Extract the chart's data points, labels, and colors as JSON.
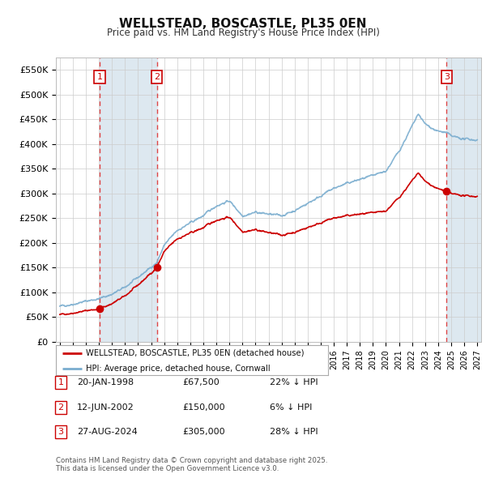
{
  "title": "WELLSTEAD, BOSCASTLE, PL35 0EN",
  "subtitle": "Price paid vs. HM Land Registry's House Price Index (HPI)",
  "background_color": "#ffffff",
  "plot_bg_color": "#ffffff",
  "grid_color": "#cccccc",
  "sale_dates_year": [
    1998.055,
    2002.44,
    2024.655
  ],
  "sale_prices": [
    67500,
    150000,
    305000
  ],
  "sale_labels": [
    "1",
    "2",
    "3"
  ],
  "ylim": [
    0,
    575000
  ],
  "yticks": [
    0,
    50000,
    100000,
    150000,
    200000,
    250000,
    300000,
    350000,
    400000,
    450000,
    500000,
    550000
  ],
  "ytick_labels": [
    "£0",
    "£50K",
    "£100K",
    "£150K",
    "£200K",
    "£250K",
    "£300K",
    "£350K",
    "£400K",
    "£450K",
    "£500K",
    "£550K"
  ],
  "xlim_start": 1994.7,
  "xlim_end": 2027.3,
  "legend_label_red": "WELLSTEAD, BOSCASTLE, PL35 0EN (detached house)",
  "legend_label_blue": "HPI: Average price, detached house, Cornwall",
  "table_rows": [
    {
      "num": "1",
      "date": "20-JAN-1998",
      "price": "£67,500",
      "hpi": "22% ↓ HPI"
    },
    {
      "num": "2",
      "date": "12-JUN-2002",
      "price": "£150,000",
      "hpi": "6% ↓ HPI"
    },
    {
      "num": "3",
      "date": "27-AUG-2024",
      "price": "£305,000",
      "hpi": "28% ↓ HPI"
    }
  ],
  "footnote": "Contains HM Land Registry data © Crown copyright and database right 2025.\nThis data is licensed under the Open Government Licence v3.0.",
  "red_color": "#cc0000",
  "blue_color": "#7aadcf",
  "vline_color": "#dd3333",
  "span1_color": "#dde8f0",
  "span2_color": "#dde8f0"
}
